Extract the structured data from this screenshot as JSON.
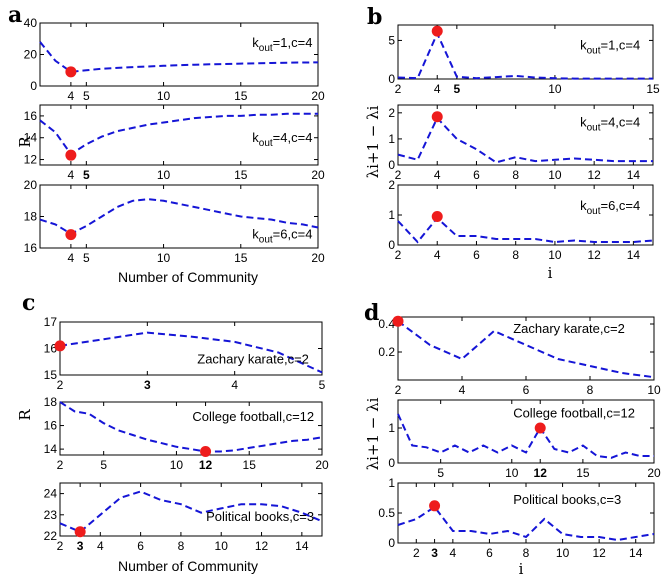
{
  "panel_letters": [
    "a",
    "b",
    "c",
    "d"
  ],
  "axis_titles": {
    "a_y": "R",
    "a_x": "Number of Community",
    "b_y": "λi+1 − λi",
    "b_x": "i",
    "c_y": "R",
    "c_x": "Number of Community",
    "d_y": "λi+1 − λi",
    "d_x": "i"
  },
  "colors": {
    "series": "#1515d6",
    "marker": "#ee1c1c",
    "frame": "#000000"
  },
  "chart_data": [
    {
      "id": "a1",
      "type": "line",
      "x": [
        2,
        3,
        4,
        5,
        6,
        7,
        8,
        9,
        10,
        11,
        12,
        13,
        14,
        15,
        16,
        17,
        18,
        19,
        20
      ],
      "y": [
        28,
        16,
        9,
        10,
        11,
        11.5,
        12,
        12.4,
        12.8,
        13.2,
        13.5,
        13.8,
        14,
        14.2,
        14.4,
        14.6,
        14.8,
        14.9,
        15
      ],
      "xlim": [
        2,
        20
      ],
      "ylim": [
        0,
        40
      ],
      "xticks": [
        {
          "v": 4,
          "t": "4"
        },
        {
          "v": 5,
          "t": "5"
        },
        {
          "v": 10,
          "t": "10"
        },
        {
          "v": 15,
          "t": "15"
        },
        {
          "v": 20,
          "t": "20"
        }
      ],
      "yticks": [
        {
          "v": 0,
          "t": "0"
        },
        {
          "v": 20,
          "t": "20"
        },
        {
          "v": 40,
          "t": "40"
        }
      ],
      "marker": {
        "x": 4,
        "y": 9
      },
      "annotation": {
        "main": "k",
        "sub": "out",
        "rest": "=1,c=4"
      }
    },
    {
      "id": "a2",
      "type": "line",
      "x": [
        2,
        3,
        4,
        5,
        6,
        7,
        8,
        9,
        10,
        11,
        12,
        13,
        14,
        15,
        16,
        17,
        18,
        19,
        20
      ],
      "y": [
        15.6,
        14.5,
        12.5,
        13.4,
        14.1,
        14.6,
        14.9,
        15.2,
        15.4,
        15.6,
        15.8,
        15.9,
        16,
        16,
        16.1,
        16.1,
        16.2,
        16.2,
        16.2
      ],
      "xlim": [
        2,
        20
      ],
      "ylim": [
        11.5,
        17
      ],
      "xticks": [
        {
          "v": 4,
          "t": "4"
        },
        {
          "v": 5,
          "t": "5",
          "bold": true
        },
        {
          "v": 10,
          "t": "10"
        },
        {
          "v": 15,
          "t": "15"
        },
        {
          "v": 20,
          "t": "20"
        }
      ],
      "yticks": [
        {
          "v": 12,
          "t": "12"
        },
        {
          "v": 14,
          "t": "14"
        },
        {
          "v": 16,
          "t": "16"
        }
      ],
      "marker": {
        "x": 4,
        "y": 12.4
      },
      "annotation": {
        "main": "k",
        "sub": "out",
        "rest": "=4,c=4"
      }
    },
    {
      "id": "a3",
      "type": "line",
      "x": [
        2,
        3,
        4,
        5,
        6,
        7,
        8,
        9,
        10,
        11,
        12,
        13,
        14,
        15,
        16,
        17,
        18,
        19,
        20
      ],
      "y": [
        17.8,
        17.5,
        16.9,
        17.4,
        18,
        18.6,
        19,
        19.1,
        19,
        18.8,
        18.6,
        18.4,
        18.2,
        18,
        17.9,
        17.8,
        17.6,
        17.5,
        17.3
      ],
      "xlim": [
        2,
        20
      ],
      "ylim": [
        16,
        20
      ],
      "xticks": [
        {
          "v": 4,
          "t": "4"
        },
        {
          "v": 5,
          "t": "5"
        },
        {
          "v": 10,
          "t": "10"
        },
        {
          "v": 15,
          "t": "15"
        },
        {
          "v": 20,
          "t": "20"
        }
      ],
      "yticks": [
        {
          "v": 16,
          "t": "16"
        },
        {
          "v": 18,
          "t": "18"
        },
        {
          "v": 20,
          "t": "20"
        }
      ],
      "marker": {
        "x": 4,
        "y": 16.85
      },
      "annotation": {
        "main": "k",
        "sub": "out",
        "rest": "=6,c=4"
      }
    },
    {
      "id": "b1",
      "type": "line",
      "x": [
        2,
        3,
        4,
        5,
        6,
        7,
        8,
        9,
        10,
        11,
        12,
        13,
        14,
        15
      ],
      "y": [
        0.2,
        0.1,
        5.9,
        0.3,
        0.1,
        0.25,
        0.4,
        0.2,
        0.1,
        0.05,
        0.05,
        0.05,
        0.05,
        0.05
      ],
      "xlim": [
        2,
        15
      ],
      "ylim": [
        0,
        7
      ],
      "xticks": [
        {
          "v": 2,
          "t": "2"
        },
        {
          "v": 4,
          "t": "4"
        },
        {
          "v": 5,
          "t": "5",
          "bold": true
        },
        {
          "v": 10,
          "t": "10"
        },
        {
          "v": 15,
          "t": "15"
        }
      ],
      "yticks": [
        {
          "v": 0,
          "t": "0"
        },
        {
          "v": 5,
          "t": "5"
        }
      ],
      "marker": {
        "x": 4,
        "y": 6.2
      },
      "annotation": {
        "main": "k",
        "sub": "out",
        "rest": "=1,c=4"
      }
    },
    {
      "id": "b2",
      "type": "line",
      "x": [
        2,
        3,
        4,
        5,
        6,
        7,
        8,
        9,
        10,
        11,
        12,
        13,
        14,
        15
      ],
      "y": [
        0.4,
        0.2,
        1.8,
        1.0,
        0.6,
        0.1,
        0.3,
        0.15,
        0.2,
        0.25,
        0.2,
        0.15,
        0.15,
        0.15
      ],
      "xlim": [
        2,
        15
      ],
      "ylim": [
        0,
        2.3
      ],
      "xticks": [
        {
          "v": 2,
          "t": "2"
        },
        {
          "v": 4,
          "t": "4"
        },
        {
          "v": 6,
          "t": "6"
        },
        {
          "v": 8,
          "t": "8"
        },
        {
          "v": 10,
          "t": "10"
        },
        {
          "v": 12,
          "t": "12"
        },
        {
          "v": 14,
          "t": "14"
        }
      ],
      "yticks": [
        {
          "v": 0,
          "t": "0"
        },
        {
          "v": 1,
          "t": "1"
        },
        {
          "v": 2,
          "t": "2"
        }
      ],
      "marker": {
        "x": 4,
        "y": 1.85
      },
      "annotation": {
        "main": "k",
        "sub": "out",
        "rest": "=4,c=4"
      }
    },
    {
      "id": "b3",
      "type": "line",
      "x": [
        2,
        3,
        4,
        5,
        6,
        7,
        8,
        9,
        10,
        11,
        12,
        13,
        14,
        15
      ],
      "y": [
        0.8,
        0.1,
        0.9,
        0.3,
        0.3,
        0.2,
        0.2,
        0.2,
        0.1,
        0.15,
        0.1,
        0.1,
        0.1,
        0.15
      ],
      "xlim": [
        2,
        15
      ],
      "ylim": [
        0,
        2
      ],
      "xticks": [
        {
          "v": 2,
          "t": "2"
        },
        {
          "v": 4,
          "t": "4"
        },
        {
          "v": 6,
          "t": "6"
        },
        {
          "v": 8,
          "t": "8"
        },
        {
          "v": 10,
          "t": "10"
        },
        {
          "v": 12,
          "t": "12"
        },
        {
          "v": 14,
          "t": "14"
        }
      ],
      "yticks": [
        {
          "v": 0,
          "t": "0"
        },
        {
          "v": 1,
          "t": "1"
        },
        {
          "v": 2,
          "t": "2"
        }
      ],
      "marker": {
        "x": 4,
        "y": 0.95
      },
      "annotation": {
        "main": "k",
        "sub": "out",
        "rest": "=6,c=4"
      }
    },
    {
      "id": "c1",
      "type": "line",
      "x": [
        2,
        2.5,
        3,
        3.5,
        4,
        4.5,
        5
      ],
      "y": [
        16.1,
        16.35,
        16.6,
        16.45,
        16.25,
        15.85,
        15.1
      ],
      "xlim": [
        2,
        5
      ],
      "ylim": [
        15,
        17
      ],
      "xticks": [
        {
          "v": 2,
          "t": "2"
        },
        {
          "v": 3,
          "t": "3",
          "bold": true
        },
        {
          "v": 4,
          "t": "4"
        },
        {
          "v": 5,
          "t": "5"
        }
      ],
      "yticks": [
        {
          "v": 15,
          "t": "15"
        },
        {
          "v": 16,
          "t": "16"
        },
        {
          "v": 17,
          "t": "17"
        }
      ],
      "marker": {
        "x": 2,
        "y": 16.1
      },
      "annotation": {
        "main": "Zachary karate,c=2"
      }
    },
    {
      "id": "c2",
      "type": "line",
      "x": [
        2,
        3,
        4,
        5,
        6,
        7,
        8,
        9,
        10,
        11,
        12,
        13,
        14,
        15,
        16,
        17,
        18,
        19,
        20
      ],
      "y": [
        18,
        17.2,
        17,
        16.2,
        15.6,
        15.2,
        14.8,
        14.5,
        14.2,
        14,
        13.8,
        13.8,
        13.9,
        14.1,
        14.3,
        14.5,
        14.7,
        14.8,
        15
      ],
      "xlim": [
        2,
        20
      ],
      "ylim": [
        13.5,
        18
      ],
      "xticks": [
        {
          "v": 2,
          "t": "2"
        },
        {
          "v": 5,
          "t": "5"
        },
        {
          "v": 10,
          "t": "10"
        },
        {
          "v": 12,
          "t": "12",
          "bold": true
        },
        {
          "v": 15,
          "t": "15"
        },
        {
          "v": 20,
          "t": "20"
        }
      ],
      "yticks": [
        {
          "v": 14,
          "t": "14"
        },
        {
          "v": 16,
          "t": "16"
        },
        {
          "v": 18,
          "t": "18"
        }
      ],
      "marker": {
        "x": 12,
        "y": 13.8
      },
      "annotation": {
        "main": "College football,c=12"
      }
    },
    {
      "id": "c3",
      "type": "line",
      "x": [
        2,
        3,
        4,
        5,
        6,
        7,
        8,
        9,
        10,
        11,
        12,
        13,
        14,
        15
      ],
      "y": [
        22.6,
        22.2,
        23,
        23.8,
        24.1,
        23.7,
        23.5,
        23.1,
        23.3,
        23.5,
        23.5,
        23.4,
        23.1,
        22.7
      ],
      "xlim": [
        2,
        15
      ],
      "ylim": [
        22,
        24.5
      ],
      "xticks": [
        {
          "v": 2,
          "t": "2"
        },
        {
          "v": 3,
          "t": "3",
          "bold": true
        },
        {
          "v": 4,
          "t": "4"
        },
        {
          "v": 6,
          "t": "6"
        },
        {
          "v": 8,
          "t": "8"
        },
        {
          "v": 10,
          "t": "10"
        },
        {
          "v": 12,
          "t": "12"
        },
        {
          "v": 14,
          "t": "14"
        }
      ],
      "yticks": [
        {
          "v": 22,
          "t": "22"
        },
        {
          "v": 23,
          "t": "23"
        },
        {
          "v": 24,
          "t": "24"
        }
      ],
      "marker": {
        "x": 3,
        "y": 22.2
      },
      "annotation": {
        "main": "Political books,c=3"
      }
    },
    {
      "id": "d1",
      "type": "line",
      "x": [
        2,
        3,
        4,
        5,
        6,
        7,
        8,
        9,
        10
      ],
      "y": [
        0.42,
        0.25,
        0.15,
        0.35,
        0.25,
        0.15,
        0.1,
        0.05,
        0.02
      ],
      "xlim": [
        2,
        10
      ],
      "ylim": [
        0,
        0.45
      ],
      "xticks": [
        {
          "v": 2,
          "t": "2"
        },
        {
          "v": 4,
          "t": "4"
        },
        {
          "v": 6,
          "t": "6"
        },
        {
          "v": 8,
          "t": "8"
        },
        {
          "v": 10,
          "t": "10"
        }
      ],
      "yticks": [
        {
          "v": 0.2,
          "t": "0.2"
        },
        {
          "v": 0.4,
          "t": "0.4"
        }
      ],
      "marker": {
        "x": 2,
        "y": 0.42
      },
      "annotation": {
        "main": "Zachary karate,c=2"
      }
    },
    {
      "id": "d2",
      "type": "line",
      "x": [
        2,
        3,
        4,
        5,
        6,
        7,
        8,
        9,
        10,
        11,
        12,
        13,
        14,
        15,
        16,
        17,
        18,
        19,
        20
      ],
      "y": [
        1.4,
        0.5,
        0.45,
        0.3,
        0.5,
        0.3,
        0.5,
        0.3,
        0.5,
        0.3,
        1.0,
        0.4,
        0.3,
        0.5,
        0.2,
        0.15,
        0.3,
        0.2,
        0.2
      ],
      "xlim": [
        2,
        20
      ],
      "ylim": [
        0,
        1.8
      ],
      "xticks": [
        {
          "v": 5,
          "t": "5"
        },
        {
          "v": 10,
          "t": "10"
        },
        {
          "v": 12,
          "t": "12",
          "bold": true
        },
        {
          "v": 15,
          "t": "15"
        },
        {
          "v": 20,
          "t": "20"
        }
      ],
      "yticks": [
        {
          "v": 0,
          "t": "0"
        },
        {
          "v": 1,
          "t": "1"
        }
      ],
      "marker": {
        "x": 12,
        "y": 1.0
      },
      "annotation": {
        "main": "College football,c=12"
      }
    },
    {
      "id": "d3",
      "type": "line",
      "x": [
        1,
        2,
        3,
        4,
        5,
        6,
        7,
        8,
        9,
        10,
        11,
        12,
        13,
        14,
        15
      ],
      "y": [
        0.3,
        0.4,
        0.6,
        0.2,
        0.2,
        0.15,
        0.2,
        0.1,
        0.4,
        0.15,
        0.1,
        0.1,
        0.05,
        0.1,
        0.15
      ],
      "xlim": [
        1,
        15
      ],
      "ylim": [
        0,
        1
      ],
      "xticks": [
        {
          "v": 2,
          "t": "2"
        },
        {
          "v": 3,
          "t": "3",
          "bold": true
        },
        {
          "v": 4,
          "t": "4"
        },
        {
          "v": 6,
          "t": "6"
        },
        {
          "v": 8,
          "t": "8"
        },
        {
          "v": 10,
          "t": "10"
        },
        {
          "v": 12,
          "t": "12"
        },
        {
          "v": 14,
          "t": "14"
        }
      ],
      "yticks": [
        {
          "v": 0,
          "t": "0"
        },
        {
          "v": 0.5,
          "t": "0.5"
        },
        {
          "v": 1,
          "t": "1"
        }
      ],
      "marker": {
        "x": 3,
        "y": 0.62
      },
      "annotation": {
        "main": "Political books,c=3"
      }
    }
  ]
}
